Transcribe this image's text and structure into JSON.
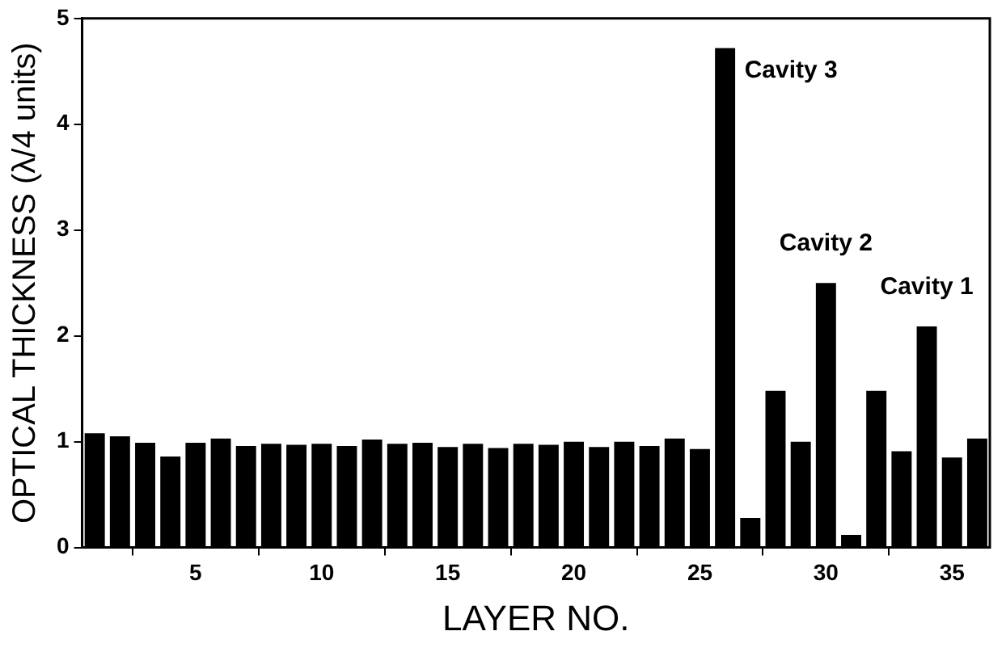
{
  "chart_data": {
    "type": "bar",
    "xlabel": "LAYER NO.",
    "ylabel": "OPTICAL THICKNESS (λ/4 units)",
    "x": [
      1,
      2,
      3,
      4,
      5,
      6,
      7,
      8,
      9,
      10,
      11,
      12,
      13,
      14,
      15,
      16,
      17,
      18,
      19,
      20,
      21,
      22,
      23,
      24,
      25,
      26,
      27,
      28,
      29,
      30,
      31,
      32,
      33,
      34,
      35,
      36
    ],
    "values": [
      1.08,
      1.05,
      0.99,
      0.86,
      0.99,
      1.03,
      0.96,
      0.98,
      0.97,
      0.98,
      0.96,
      1.02,
      0.98,
      0.99,
      0.95,
      0.98,
      0.94,
      0.98,
      0.97,
      1.0,
      0.95,
      1.0,
      0.96,
      1.03,
      0.93,
      4.72,
      0.28,
      1.48,
      1.0,
      2.5,
      0.12,
      1.48,
      0.91,
      2.09,
      0.85,
      1.03
    ],
    "color": "#000000",
    "xlim": [
      0.5,
      36.5
    ],
    "xticks": [
      5,
      10,
      15,
      20,
      25,
      30,
      35
    ],
    "ylim": [
      0,
      5
    ],
    "yticks": [
      0,
      1,
      2,
      3,
      4,
      5
    ],
    "grid": false,
    "legend": false,
    "annotations": [
      {
        "text": "Cavity 3",
        "x": 26,
        "y": 4.72
      },
      {
        "text": "Cavity 2",
        "x": 30,
        "y": 2.5
      },
      {
        "text": "Cavity 1",
        "x": 34,
        "y": 2.09
      }
    ]
  }
}
